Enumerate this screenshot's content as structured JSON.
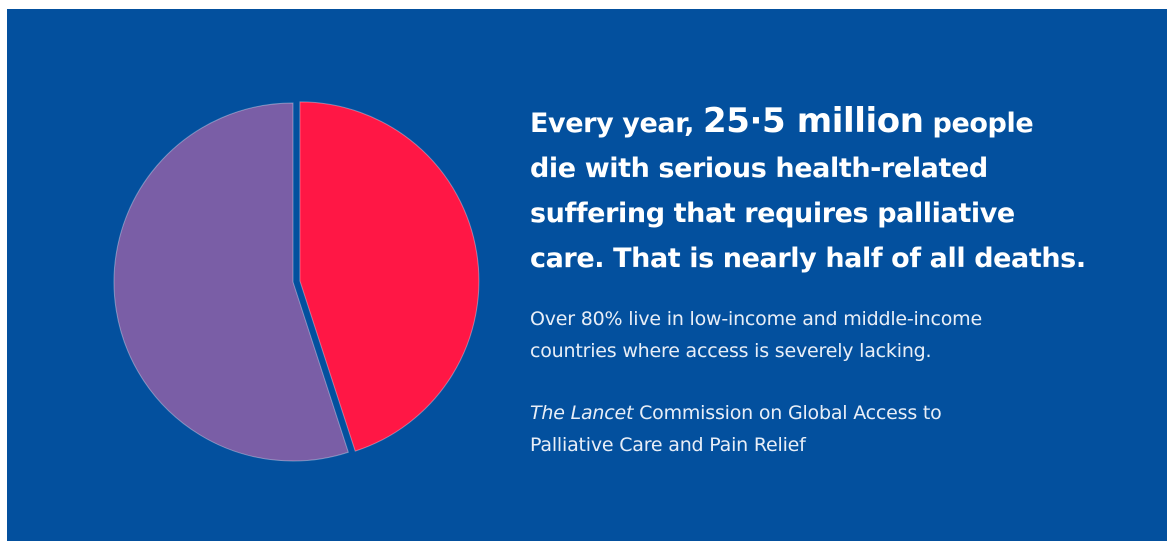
{
  "headline": {
    "part1": "Every year, ",
    "highlight": "25·5 million",
    "part2": " people die with serious health-related suffering that requires palliative care. That is nearly half of all deaths."
  },
  "headline_lines": [
    [
      "Every year, ",
      "25·5 million",
      " people"
    ],
    [
      "die with serious health-related"
    ],
    [
      "suffering that requires palliative"
    ],
    [
      "care. That is nearly half of all deaths."
    ]
  ],
  "subtext": {
    "line1": "Over 80% live in low-income and middle-income",
    "line2": "countries where access is severely lacking."
  },
  "credit": {
    "journal": "The Lancet",
    "rest_line1": " Commission on Global Access to",
    "line2": "Palliative Care and Pain Relief"
  },
  "colors": {
    "background": "#03509e",
    "slice_highlight": "#ff1745",
    "slice_rest": "#7a5ea6",
    "text": "#ffffff"
  },
  "chart_data": {
    "type": "pie",
    "slices": [
      {
        "value": 45,
        "color": "#ff1745",
        "exploded": true
      },
      {
        "value": 55,
        "color": "#7a5ea6",
        "exploded": false
      }
    ]
  }
}
